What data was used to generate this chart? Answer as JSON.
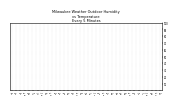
{
  "title_line1": "Milwaukee Weather Outdoor Humidity",
  "title_line2": "vs Temperature",
  "title_line3": "Every 5 Minutes",
  "blue_color": "#0000cc",
  "red_color": "#cc0000",
  "background_color": "#ffffff",
  "plot_bg_color": "#ffffff",
  "grid_color": "#999999",
  "title_color": "#000000",
  "ylim": [
    0,
    100
  ],
  "yticks": [
    10,
    20,
    30,
    40,
    50,
    60,
    70,
    80,
    90,
    100
  ],
  "num_points": 300,
  "seed": 7
}
